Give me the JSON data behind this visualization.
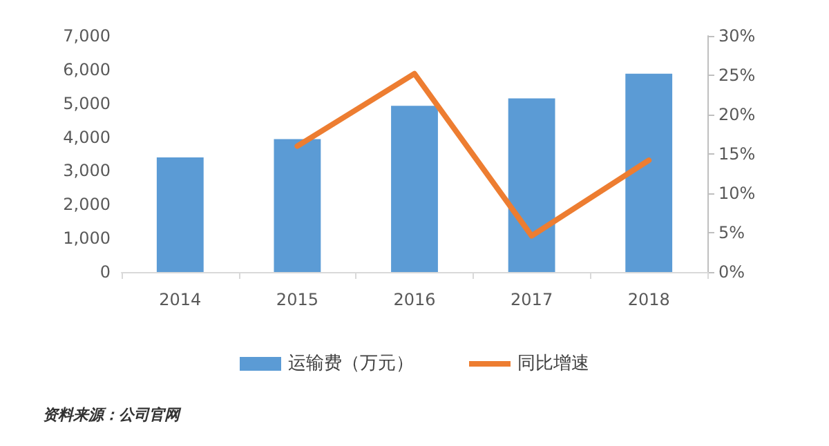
{
  "chart_data": {
    "type": "bar",
    "categories": [
      "2014",
      "2015",
      "2016",
      "2017",
      "2018"
    ],
    "series": [
      {
        "name": "运输费（万元）",
        "color": "#5b9bd5",
        "values": [
          3400,
          3940,
          4930,
          5150,
          5880
        ]
      },
      {
        "name": "同比增速",
        "type": "line",
        "axis": "y2",
        "color": "#ed7d31",
        "values": [
          null,
          16.0,
          25.2,
          4.6,
          14.2
        ]
      }
    ],
    "ylim": [
      0,
      7000
    ],
    "yticks": [
      {
        "value": 0,
        "label": "0"
      },
      {
        "value": 1000,
        "label": "1,000"
      },
      {
        "value": 2000,
        "label": "2,000"
      },
      {
        "value": 3000,
        "label": "3,000"
      },
      {
        "value": 4000,
        "label": "4,000"
      },
      {
        "value": 5000,
        "label": "5,000"
      },
      {
        "value": 6000,
        "label": "6,000"
      },
      {
        "value": 7000,
        "label": "7,000"
      }
    ],
    "y2lim": [
      0,
      30
    ],
    "y2ticks": [
      {
        "value": 0,
        "label": "0%"
      },
      {
        "value": 5,
        "label": "5%"
      },
      {
        "value": 10,
        "label": "10%"
      },
      {
        "value": 15,
        "label": "15%"
      },
      {
        "value": 20,
        "label": "20%"
      },
      {
        "value": 25,
        "label": "25%"
      },
      {
        "value": 30,
        "label": "30%"
      }
    ],
    "grid": false,
    "legend": "bottom",
    "marker": "none",
    "line_style": "solid",
    "annotations": [
      "资料来源：公司官网"
    ]
  }
}
